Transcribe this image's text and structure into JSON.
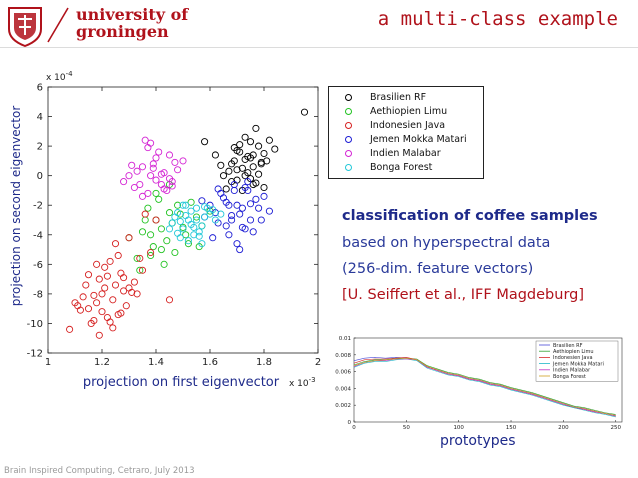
{
  "header": {
    "university_line1": "university of",
    "university_line2": "groningen",
    "slide_title": "a multi-class example",
    "brand_color": "#b0121b"
  },
  "chart_data": [
    {
      "type": "scatter",
      "xlabel": "projection on first eigenvector",
      "ylabel": "projection on second eigenvector",
      "x_exponent": "x 10",
      "x_exponent_power": "-3",
      "y_exponent": "x 10",
      "y_exponent_power": "-4",
      "xlim": [
        1,
        2
      ],
      "ylim": [
        -12,
        6
      ],
      "xticks": [
        "1",
        "1.2",
        "1.4",
        "1.6",
        "1.8",
        "2"
      ],
      "yticks": [
        "6",
        "4",
        "2",
        "0",
        "-2",
        "-4",
        "-6",
        "-8",
        "-10",
        "-12"
      ],
      "grid": false,
      "legend_position": "right",
      "series": [
        {
          "name": "Brasilien RF",
          "color": "#000000",
          "x": [
            1.72,
            1.75,
            1.7,
            1.78,
            1.65,
            1.68,
            1.8,
            1.76,
            1.73,
            1.69,
            1.82,
            1.74,
            1.71,
            1.79,
            1.66,
            1.77,
            1.7,
            1.84,
            1.75,
            1.62,
            1.95,
            1.58,
            1.8,
            1.73,
            1.68,
            1.76,
            1.71,
            1.78,
            1.74,
            1.67,
            1.72,
            1.81,
            1.69,
            1.75,
            1.77,
            1.64,
            1.73,
            1.7,
            1.79,
            1.76
          ],
          "y": [
            0.5,
            1.2,
            -0.3,
            2.0,
            0.0,
            0.8,
            1.5,
            -0.6,
            2.6,
            1.0,
            2.4,
            0.2,
            1.6,
            0.9,
            -0.9,
            3.2,
            0.4,
            1.8,
            -0.2,
            1.4,
            4.3,
            2.3,
            -0.8,
            1.1,
            -0.4,
            0.6,
            2.1,
            0.1,
            1.3,
            0.3,
            -1.0,
            1.0,
            1.9,
            2.3,
            -0.5,
            0.7,
            0.0,
            1.7,
            0.8,
            1.4
          ]
        },
        {
          "name": "Aethiopien Limu",
          "color": "#22c322",
          "x": [
            1.4,
            1.45,
            1.38,
            1.5,
            1.42,
            1.48,
            1.35,
            1.55,
            1.44,
            1.37,
            1.52,
            1.46,
            1.33,
            1.41,
            1.57,
            1.39,
            1.49,
            1.43,
            1.36,
            1.53,
            1.3,
            1.47,
            1.6,
            1.34,
            1.51,
            1.42,
            1.45,
            1.38,
            1.56,
            1.4
          ],
          "y": [
            -3.0,
            -2.5,
            -4.0,
            -3.5,
            -5.0,
            -2.0,
            -3.8,
            -2.8,
            -4.4,
            -2.2,
            -4.6,
            -3.2,
            -5.6,
            -1.6,
            -3.4,
            -4.8,
            -2.6,
            -6.0,
            -3.0,
            -1.8,
            -4.2,
            -5.2,
            -2.4,
            -6.4,
            -4.0,
            -3.6,
            -0.6,
            -5.4,
            -4.8,
            -1.2
          ]
        },
        {
          "name": "Indonesien Java",
          "color": "#d62020",
          "x": [
            1.2,
            1.25,
            1.18,
            1.22,
            1.15,
            1.28,
            1.24,
            1.19,
            1.13,
            1.26,
            1.21,
            1.17,
            1.3,
            1.23,
            1.11,
            1.27,
            1.16,
            1.2,
            1.32,
            1.24,
            1.1,
            1.29,
            1.18,
            1.22,
            1.14,
            1.26,
            1.35,
            1.19,
            1.08,
            1.25,
            1.33,
            1.38,
            1.4,
            1.3,
            1.36,
            1.21,
            1.12,
            1.28,
            1.45,
            1.17,
            1.23,
            1.31,
            1.15,
            1.27,
            1.34
          ],
          "y": [
            -8.0,
            -7.4,
            -8.6,
            -6.8,
            -9.0,
            -7.8,
            -8.4,
            -7.0,
            -8.2,
            -9.4,
            -6.2,
            -9.8,
            -7.6,
            -5.8,
            -8.8,
            -6.6,
            -10.0,
            -9.2,
            -7.2,
            -10.3,
            -8.6,
            -8.8,
            -6.0,
            -9.6,
            -7.4,
            -5.4,
            -6.4,
            -10.8,
            -10.4,
            -4.6,
            -8.0,
            -5.2,
            -3.0,
            -4.2,
            -2.6,
            -7.6,
            -9.1,
            -6.9,
            -8.4,
            -8.1,
            -9.9,
            -7.9,
            -6.7,
            -9.3,
            -5.6
          ]
        },
        {
          "name": "Jemen Mokka Matari",
          "color": "#1c1cd4",
          "x": [
            1.65,
            1.7,
            1.68,
            1.74,
            1.62,
            1.72,
            1.66,
            1.78,
            1.69,
            1.75,
            1.63,
            1.71,
            1.8,
            1.67,
            1.73,
            1.6,
            1.76,
            1.64,
            1.82,
            1.7,
            1.58,
            1.77,
            1.66,
            1.72,
            1.69,
            1.74,
            1.61,
            1.79,
            1.67,
            1.71,
            1.63,
            1.75,
            1.68,
            1.73,
            1.57
          ],
          "y": [
            -1.5,
            -2.0,
            -3.0,
            -1.0,
            -2.5,
            -3.5,
            -1.8,
            -2.2,
            -0.6,
            -3.0,
            -3.2,
            -2.6,
            -1.4,
            -4.0,
            -0.8,
            -2.0,
            -3.8,
            -1.2,
            -2.4,
            -4.6,
            -2.8,
            -1.6,
            -3.4,
            -2.2,
            -1.0,
            -0.4,
            -4.2,
            -3.0,
            -2.0,
            -5.0,
            -0.9,
            -1.9,
            -2.7,
            -3.6,
            -1.7
          ]
        },
        {
          "name": "Indien Malabar",
          "color": "#d424d4",
          "x": [
            1.38,
            1.42,
            1.35,
            1.45,
            1.4,
            1.32,
            1.48,
            1.37,
            1.43,
            1.3,
            1.46,
            1.39,
            1.34,
            1.41,
            1.36,
            1.44,
            1.28,
            1.47,
            1.33,
            1.4,
            1.5,
            1.37,
            1.43,
            1.35,
            1.39,
            1.45,
            1.31,
            1.42,
            1.38,
            1.46
          ],
          "y": [
            0.0,
            -0.6,
            0.6,
            -0.2,
            1.2,
            -0.8,
            0.4,
            -1.2,
            0.2,
            0.0,
            -0.4,
            0.8,
            -0.6,
            1.6,
            2.4,
            -1.0,
            -0.4,
            0.9,
            0.3,
            -0.3,
            1.0,
            1.9,
            -0.9,
            -1.4,
            0.5,
            1.4,
            0.7,
            0.1,
            2.2,
            -0.7
          ]
        },
        {
          "name": "Bonga Forest",
          "color": "#22c8d8",
          "x": [
            1.48,
            1.52,
            1.55,
            1.5,
            1.58,
            1.46,
            1.54,
            1.6,
            1.51,
            1.57,
            1.49,
            1.53,
            1.62,
            1.47,
            1.56,
            1.59,
            1.45,
            1.52,
            1.64,
            1.5,
            1.55,
            1.57,
            1.53,
            1.48,
            1.61,
            1.51,
            1.54,
            1.58,
            1.56,
            1.49
          ],
          "y": [
            -2.5,
            -3.0,
            -2.2,
            -3.6,
            -2.8,
            -3.2,
            -4.0,
            -2.6,
            -2.0,
            -3.4,
            -4.2,
            -2.4,
            -3.0,
            -2.8,
            -3.8,
            -2.2,
            -3.6,
            -4.4,
            -2.6,
            -2.0,
            -3.0,
            -4.6,
            -3.3,
            -3.9,
            -2.3,
            -2.7,
            -3.5,
            -2.1,
            -4.1,
            -3.1
          ]
        }
      ]
    },
    {
      "type": "line",
      "title": "prototypes",
      "xlim": [
        0,
        256
      ],
      "ylim": [
        0,
        0.01
      ],
      "xticks": [
        "0",
        "50",
        "100",
        "150",
        "200",
        "250"
      ],
      "yticks": [
        "0",
        "0.002",
        "0.004",
        "0.006",
        "0.008",
        "0.01"
      ],
      "legend_position": "top-right",
      "x": [
        0,
        10,
        20,
        30,
        40,
        50,
        60,
        70,
        80,
        90,
        100,
        110,
        120,
        130,
        140,
        150,
        160,
        170,
        180,
        190,
        200,
        210,
        220,
        230,
        240,
        250
      ],
      "series": [
        {
          "name": "Brasilien RF",
          "color": "#4a4ad8",
          "values": [
            0.0073,
            0.0076,
            0.0077,
            0.0076,
            0.0077,
            0.0076,
            0.0074,
            0.0065,
            0.0062,
            0.0058,
            0.0056,
            0.0052,
            0.005,
            0.0046,
            0.0044,
            0.004,
            0.0037,
            0.0034,
            0.003,
            0.0026,
            0.0022,
            0.0018,
            0.0016,
            0.0013,
            0.001,
            0.0008
          ]
        },
        {
          "name": "Aethiopien Limu",
          "color": "#2ea02e",
          "values": [
            0.0068,
            0.0072,
            0.0074,
            0.0074,
            0.0076,
            0.0076,
            0.0075,
            0.0067,
            0.0063,
            0.0059,
            0.0057,
            0.0053,
            0.0051,
            0.0047,
            0.0045,
            0.0041,
            0.0038,
            0.0035,
            0.0031,
            0.0027,
            0.0023,
            0.0019,
            0.0017,
            0.0014,
            0.0011,
            0.0009
          ]
        },
        {
          "name": "Indonesien Java",
          "color": "#d62828",
          "values": [
            0.007,
            0.0074,
            0.0075,
            0.0075,
            0.0076,
            0.0077,
            0.0074,
            0.0066,
            0.0061,
            0.0057,
            0.0055,
            0.0051,
            0.0049,
            0.0045,
            0.0043,
            0.0039,
            0.0036,
            0.0033,
            0.0029,
            0.0025,
            0.0021,
            0.0017,
            0.0015,
            0.0012,
            0.001,
            0.0007
          ]
        },
        {
          "name": "Jemen Mokka Matari",
          "color": "#20b8c8",
          "values": [
            0.0065,
            0.007,
            0.0072,
            0.0072,
            0.0074,
            0.0075,
            0.0073,
            0.0064,
            0.006,
            0.0056,
            0.0054,
            0.005,
            0.0048,
            0.0044,
            0.0042,
            0.0038,
            0.0035,
            0.0032,
            0.0028,
            0.0024,
            0.002,
            0.0017,
            0.0014,
            0.0011,
            0.0009,
            0.0006
          ]
        },
        {
          "name": "Indien Malabar",
          "color": "#c030c0",
          "values": [
            0.0066,
            0.0071,
            0.0073,
            0.0073,
            0.0075,
            0.0075,
            0.0074,
            0.0065,
            0.0061,
            0.0057,
            0.0055,
            0.0051,
            0.0049,
            0.0045,
            0.0043,
            0.0039,
            0.0036,
            0.0033,
            0.0029,
            0.0025,
            0.0021,
            0.0018,
            0.0015,
            0.0012,
            0.001,
            0.0007
          ]
        },
        {
          "name": "Bonga Forest",
          "color": "#d0a020",
          "values": [
            0.0067,
            0.0071,
            0.0073,
            0.0074,
            0.0075,
            0.0076,
            0.0074,
            0.0066,
            0.0062,
            0.0058,
            0.0056,
            0.0052,
            0.005,
            0.0046,
            0.0044,
            0.004,
            0.0037,
            0.0034,
            0.003,
            0.0026,
            0.0022,
            0.0018,
            0.0016,
            0.0013,
            0.001,
            0.0008
          ]
        }
      ]
    }
  ],
  "legend_items": [
    "Brasilien RF",
    "Aethiopien Limu",
    "Indonesien Java",
    "Jemen Mokka Matari",
    "Indien Malabar",
    "Bonga Forest"
  ],
  "text_block": {
    "title": "classification  of coffee samples",
    "line2": "based on hyperspectral data",
    "line3": "(256-dim. feature vectors)",
    "line4": "[U. Seiffert et al., IFF Magdeburg]"
  },
  "prototypes_caption": "prototypes",
  "footer": "Brain Inspired Computing, Cetraro, July 2013"
}
